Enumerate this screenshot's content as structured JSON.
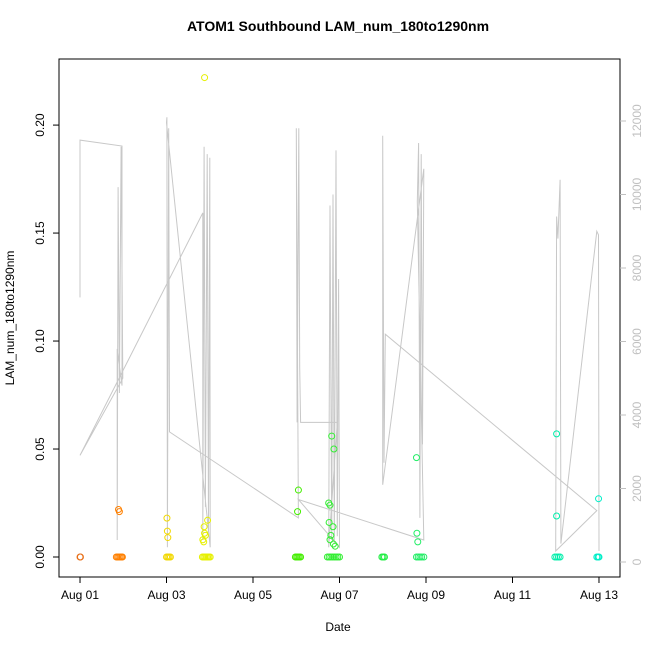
{
  "chart_data": {
    "type": "scatter",
    "title": "ATOM1 Southbound LAM_num_180to1290nm",
    "xlabel": "Date",
    "ylabel": "LAM_num_180to1290nm",
    "xlim": [
      0.514,
      13.486
    ],
    "xticks": [
      {
        "value": 1,
        "label": "Aug 01"
      },
      {
        "value": 3,
        "label": "Aug 03"
      },
      {
        "value": 5,
        "label": "Aug 05"
      },
      {
        "value": 7,
        "label": "Aug 07"
      },
      {
        "value": 9,
        "label": "Aug 09"
      },
      {
        "value": 11,
        "label": "Aug 11"
      },
      {
        "value": 13,
        "label": "Aug 13"
      }
    ],
    "ylim": [
      -0.00926,
      0.2306
    ],
    "yticks": [
      {
        "value": 0,
        "label": "0.00"
      },
      {
        "value": 0.05,
        "label": "0.05"
      },
      {
        "value": 0.1,
        "label": "0.10"
      },
      {
        "value": 0.15,
        "label": "0.15"
      },
      {
        "value": 0.2,
        "label": "0.20"
      }
    ],
    "y2lim": [
      -408,
      13687
    ],
    "y2ticks": [
      0,
      2000,
      4000,
      6000,
      8000,
      10000,
      12000
    ],
    "y2color": "#c0c0c0",
    "series": [
      {
        "type": "line",
        "axis": "y2",
        "color": "#c8c8c8",
        "x": [
          1.0,
          1.0,
          1.97,
          1.97,
          1.86,
          1.86,
          1.88,
          1.91,
          1.95,
          1.99,
          1.0,
          3.84,
          3.84,
          3.87,
          3.9,
          3.94,
          3.97,
          4.0,
          4.01,
          3.0,
          3.01,
          3.02,
          3.05,
          3.07,
          6.05,
          6.0,
          6.02,
          6.06,
          6.08,
          6.1,
          6.95,
          6.75,
          6.78,
          6.82,
          6.85,
          6.88,
          6.92,
          6.95,
          6.98,
          7.0,
          6.05,
          8.95,
          8.8,
          8.83,
          8.86,
          8.89,
          8.92,
          8.95,
          8.0,
          8.0,
          8.03,
          8.06,
          12.95,
          12.0,
          12.02,
          12.05,
          12.1,
          12.12,
          12.95,
          12.99,
          13.0
        ],
        "values": [
          7200,
          11480,
          11320,
          4800,
          5800,
          600,
          10200,
          4600,
          11300,
          5000,
          2900,
          9500,
          600,
          11300,
          1500,
          11100,
          800,
          11000,
          400,
          11950,
          12100,
          400,
          11800,
          3540,
          1200,
          11800,
          3800,
          11800,
          5300,
          3800,
          3800,
          400,
          9700,
          600,
          10000,
          500,
          11200,
          700,
          7700,
          400,
          1700,
          600,
          9800,
          11400,
          1200,
          11100,
          3200,
          10700,
          2100,
          11600,
          2700,
          6200,
          1400,
          300,
          9400,
          8800,
          10400,
          500,
          9000,
          8900,
          300
        ]
      },
      {
        "type": "scatter",
        "color": "#e8701a",
        "x": [
          1.0,
          1.01
        ],
        "values": [
          0,
          0
        ]
      },
      {
        "type": "scatter",
        "color": "#ff8000",
        "x": [
          1.84,
          1.87,
          1.9,
          1.93,
          1.96,
          1.98,
          1.89,
          1.91
        ],
        "values": [
          0,
          0,
          0,
          0,
          0,
          0,
          0.022,
          0.021
        ]
      },
      {
        "type": "scatter",
        "color": "#f2d800",
        "x": [
          3.0,
          3.03,
          3.06,
          3.09,
          3.01,
          3.02,
          3.03
        ],
        "values": [
          0,
          0,
          0,
          0,
          0.018,
          0.012,
          0.009
        ]
      },
      {
        "type": "scatter",
        "color": "#e6f000",
        "x": [
          3.83,
          3.86,
          3.89,
          3.92,
          3.95,
          3.98,
          4.01,
          3.88,
          3.95,
          3.87,
          3.9,
          3.84,
          3.86,
          3.88
        ],
        "values": [
          0,
          0,
          0,
          0,
          0,
          0,
          0,
          0.222,
          0.017,
          0.014,
          0.01,
          0.008,
          0.007,
          0.011
        ]
      },
      {
        "type": "scatter",
        "color": "#44ee00",
        "x": [
          5.98,
          6.01,
          6.04,
          6.07,
          6.1,
          6.05,
          6.03
        ],
        "values": [
          0,
          0,
          0,
          0,
          0,
          0.031,
          0.021
        ]
      },
      {
        "type": "scatter",
        "color": "#33ee33",
        "x": [
          6.72,
          6.76,
          6.8,
          6.84,
          6.88,
          6.92,
          6.96,
          7.0,
          6.75,
          6.78,
          6.76,
          6.85,
          6.8,
          6.78,
          6.86,
          6.82,
          6.87,
          6.9
        ],
        "values": [
          0,
          0,
          0,
          0,
          0,
          0,
          0,
          0,
          0.025,
          0.024,
          0.016,
          0.014,
          0.01,
          0.008,
          0.006,
          0.056,
          0.05,
          0.005
        ]
      },
      {
        "type": "scatter",
        "color": "#22ee44",
        "x": [
          7.98,
          8.01,
          8.04
        ],
        "values": [
          0,
          0,
          0
        ]
      },
      {
        "type": "scatter",
        "color": "#22ee66",
        "x": [
          8.78,
          8.82,
          8.86,
          8.9,
          8.95,
          8.78,
          8.79,
          8.81
        ],
        "values": [
          0,
          0,
          0,
          0,
          0,
          0.046,
          0.011,
          0.007
        ]
      },
      {
        "type": "scatter",
        "color": "#00eeaa",
        "x": [
          11.98,
          12.02,
          12.06,
          12.1,
          12.02,
          12.02
        ],
        "values": [
          0,
          0,
          0,
          0,
          0.057,
          0.019
        ]
      },
      {
        "type": "scatter",
        "color": "#00eec8",
        "x": [
          12.95,
          12.98,
          13.0,
          12.99
        ],
        "values": [
          0,
          0,
          0,
          0.027
        ]
      }
    ]
  }
}
